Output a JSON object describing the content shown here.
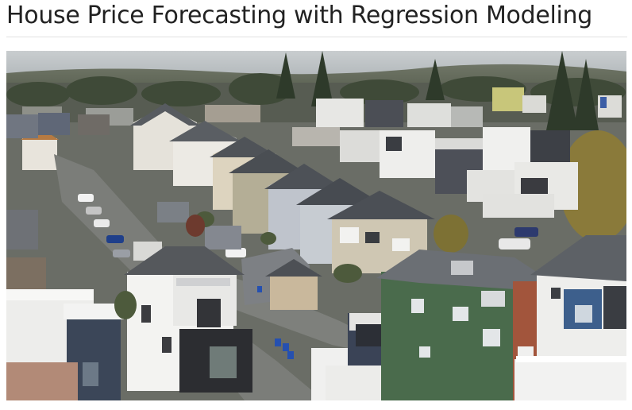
{
  "page": {
    "title": "House Price Forecasting with Regression Modeling"
  },
  "hero_image": {
    "alt": "Aerial view of a residential neighborhood with rows of townhouses and streets"
  }
}
